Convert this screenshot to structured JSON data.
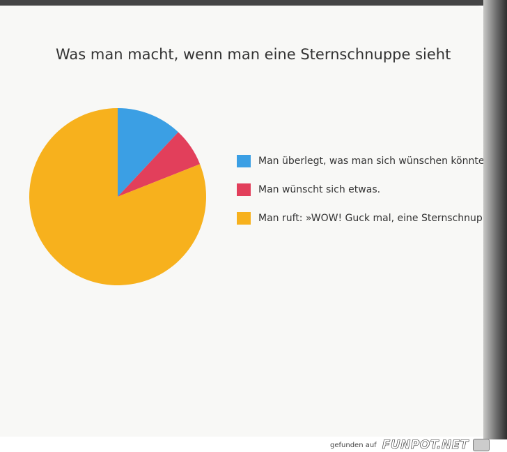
{
  "chart_data": {
    "type": "pie",
    "title": "Was man macht, wenn man eine Sternschnuppe sieht",
    "categories": [
      "Man überlegt, was man sich wünschen könnte.",
      "Man wünscht sich etwas.",
      "Man ruft: »WOW! Guck mal, eine Sternschnuppe!«"
    ],
    "values": [
      12,
      7,
      81
    ],
    "colors": [
      "#3b9fe4",
      "#e23f5b",
      "#f7b11d"
    ],
    "start_angle": "12 o'clock",
    "direction": "clockwise",
    "legend_placement": "right"
  },
  "footer": {
    "credit_text": "gefunden auf",
    "credit_brand": "FUNPOT.NET"
  }
}
